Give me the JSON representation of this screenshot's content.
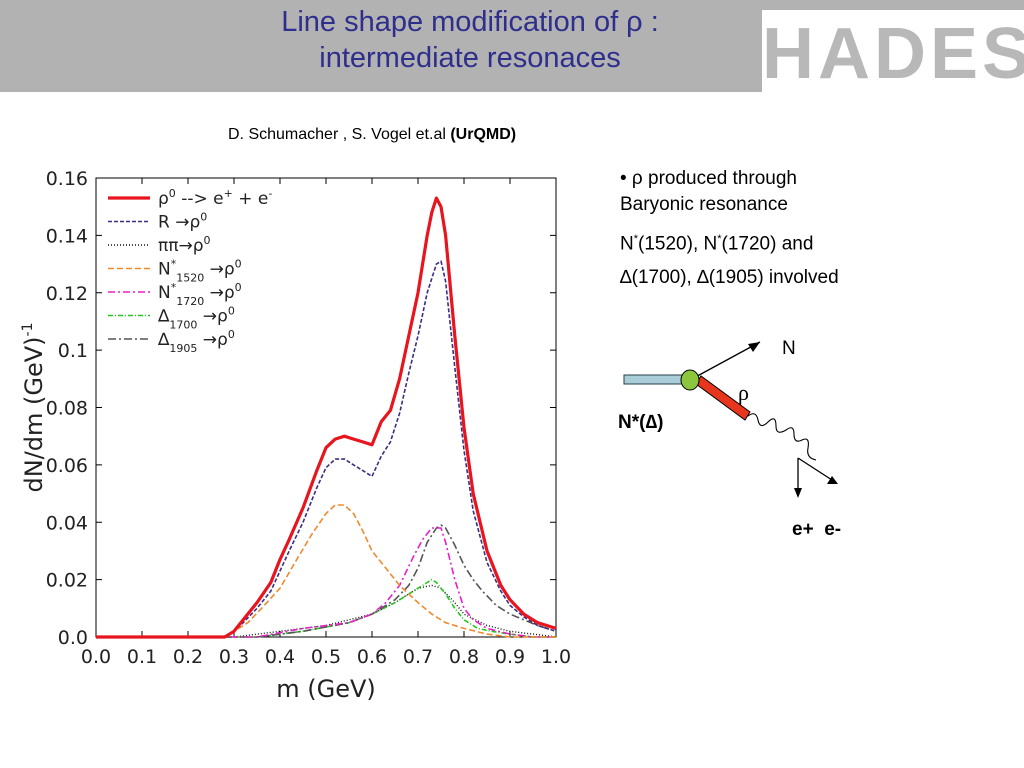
{
  "header": {
    "title_line1": "Line shape modification of ρ :",
    "title_line2": "intermediate resonaces",
    "logo_text": "HADES",
    "bg_color": "#b2b2b2",
    "title_color": "#2e2e8c"
  },
  "credit": {
    "authors": "D. Schumacher , S. Vogel et.al ",
    "model": "(UrQMD)"
  },
  "bullets": {
    "line1_sym": "• ρ",
    "line1_rest": " produced through",
    "line2": "Baryonic resonance",
    "line3_a": "N",
    "line3_sup1": "*",
    "line3_b": "(1520), N",
    "line3_sup2": "*",
    "line3_c": "(1720) and",
    "line4": "∆(1700), ∆(1905) involved"
  },
  "diagram": {
    "n_label": "N",
    "rho_label": "ρ",
    "resonance_label": "N*(∆)",
    "leptons_label": "e+  e-"
  },
  "chart_data": {
    "type": "line",
    "xlabel": "m (GeV)",
    "ylabel": "dN/dm (GeV)",
    "ylabel_sup": "-1",
    "xlim": [
      0.0,
      1.0
    ],
    "ylim": [
      0.0,
      0.16
    ],
    "xticks": [
      "0.0",
      "0.1",
      "0.2",
      "0.3",
      "0.4",
      "0.5",
      "0.6",
      "0.7",
      "0.8",
      "0.9",
      "1.0"
    ],
    "yticks": [
      "0.0",
      "0.02",
      "0.04",
      "0.06",
      "0.08",
      "0.1",
      "0.12",
      "0.14",
      "0.16"
    ],
    "legend_position": "top-left",
    "series": [
      {
        "key": "total",
        "name": "ρ⁰ --> e⁺ + e⁻",
        "color": "#e8141e",
        "dash": "",
        "width": 3.2,
        "x": [
          0.0,
          0.28,
          0.3,
          0.32,
          0.35,
          0.38,
          0.4,
          0.42,
          0.45,
          0.48,
          0.5,
          0.52,
          0.54,
          0.56,
          0.58,
          0.6,
          0.62,
          0.64,
          0.66,
          0.68,
          0.7,
          0.72,
          0.73,
          0.74,
          0.75,
          0.76,
          0.78,
          0.8,
          0.82,
          0.85,
          0.88,
          0.9,
          0.93,
          0.96,
          1.0
        ],
        "y": [
          0.0,
          0.0,
          0.002,
          0.006,
          0.012,
          0.019,
          0.027,
          0.034,
          0.045,
          0.058,
          0.066,
          0.069,
          0.07,
          0.069,
          0.068,
          0.067,
          0.075,
          0.079,
          0.09,
          0.105,
          0.12,
          0.14,
          0.148,
          0.153,
          0.15,
          0.14,
          0.105,
          0.073,
          0.05,
          0.03,
          0.018,
          0.013,
          0.008,
          0.005,
          0.003
        ]
      },
      {
        "key": "R",
        "name": "R →ρ⁰",
        "color": "#3a2e82",
        "dash": "4 2",
        "width": 1.6,
        "x": [
          0.0,
          0.28,
          0.3,
          0.32,
          0.35,
          0.38,
          0.4,
          0.42,
          0.45,
          0.48,
          0.5,
          0.52,
          0.54,
          0.56,
          0.58,
          0.6,
          0.62,
          0.64,
          0.66,
          0.68,
          0.7,
          0.72,
          0.74,
          0.75,
          0.76,
          0.78,
          0.8,
          0.82,
          0.85,
          0.88,
          0.9,
          0.93,
          0.96,
          1.0
        ],
        "y": [
          0.0,
          0.0,
          0.002,
          0.005,
          0.01,
          0.016,
          0.023,
          0.03,
          0.04,
          0.052,
          0.059,
          0.062,
          0.062,
          0.06,
          0.058,
          0.056,
          0.063,
          0.068,
          0.078,
          0.092,
          0.105,
          0.12,
          0.13,
          0.131,
          0.124,
          0.094,
          0.065,
          0.044,
          0.026,
          0.016,
          0.011,
          0.007,
          0.004,
          0.002
        ]
      },
      {
        "key": "pipi",
        "name": "ππ→ρ⁰",
        "color": "#111111",
        "dash": "1 2",
        "width": 1.4,
        "x": [
          0.0,
          0.3,
          0.4,
          0.5,
          0.6,
          0.65,
          0.7,
          0.73,
          0.75,
          0.78,
          0.8,
          0.85,
          0.9,
          0.95,
          1.0
        ],
        "y": [
          0.0,
          0.0,
          0.002,
          0.004,
          0.008,
          0.012,
          0.017,
          0.018,
          0.017,
          0.012,
          0.008,
          0.004,
          0.002,
          0.001,
          0.0
        ]
      },
      {
        "key": "N1520",
        "name": "N*1520 →ρ⁰",
        "color": "#f08a2c",
        "dash": "6 3",
        "width": 1.6,
        "x": [
          0.0,
          0.28,
          0.3,
          0.33,
          0.36,
          0.4,
          0.44,
          0.47,
          0.5,
          0.52,
          0.54,
          0.56,
          0.58,
          0.6,
          0.63,
          0.66,
          0.7,
          0.73,
          0.76,
          0.8,
          0.85,
          0.9,
          0.95,
          1.0
        ],
        "y": [
          0.0,
          0.0,
          0.002,
          0.005,
          0.01,
          0.017,
          0.028,
          0.036,
          0.043,
          0.046,
          0.046,
          0.043,
          0.037,
          0.03,
          0.024,
          0.018,
          0.012,
          0.008,
          0.005,
          0.003,
          0.001,
          0.0,
          0.0,
          0.0
        ]
      },
      {
        "key": "N1720",
        "name": "N*1720 →ρ⁰",
        "color": "#e81ec8",
        "dash": "7 3 2 3",
        "width": 1.6,
        "x": [
          0.0,
          0.35,
          0.45,
          0.55,
          0.6,
          0.63,
          0.66,
          0.69,
          0.71,
          0.73,
          0.75,
          0.76,
          0.78,
          0.8,
          0.82,
          0.85,
          0.9,
          0.95,
          1.0
        ],
        "y": [
          0.0,
          0.0,
          0.003,
          0.005,
          0.008,
          0.012,
          0.018,
          0.028,
          0.034,
          0.038,
          0.038,
          0.033,
          0.02,
          0.01,
          0.006,
          0.003,
          0.001,
          0.0,
          0.0
        ]
      },
      {
        "key": "D1700",
        "name": "∆1700 →ρ⁰",
        "color": "#22c81e",
        "dash": "5 2 1 2",
        "width": 1.6,
        "x": [
          0.0,
          0.35,
          0.45,
          0.55,
          0.6,
          0.65,
          0.68,
          0.7,
          0.72,
          0.73,
          0.74,
          0.76,
          0.78,
          0.8,
          0.83,
          0.86,
          0.9,
          0.95,
          1.0
        ],
        "y": [
          0.0,
          0.0,
          0.002,
          0.005,
          0.008,
          0.012,
          0.015,
          0.017,
          0.019,
          0.02,
          0.019,
          0.015,
          0.01,
          0.006,
          0.003,
          0.002,
          0.001,
          0.0,
          0.0
        ]
      },
      {
        "key": "D1905",
        "name": "∆1905 →ρ⁰",
        "color": "#555555",
        "dash": "8 3 2 3",
        "width": 1.6,
        "x": [
          0.0,
          0.35,
          0.45,
          0.55,
          0.6,
          0.65,
          0.68,
          0.7,
          0.72,
          0.74,
          0.75,
          0.76,
          0.78,
          0.8,
          0.82,
          0.84,
          0.87,
          0.9,
          0.93,
          0.96,
          1.0
        ],
        "y": [
          0.0,
          0.0,
          0.002,
          0.005,
          0.008,
          0.013,
          0.018,
          0.024,
          0.033,
          0.038,
          0.039,
          0.038,
          0.032,
          0.025,
          0.02,
          0.016,
          0.011,
          0.008,
          0.006,
          0.004,
          0.002
        ]
      }
    ],
    "legend": [
      {
        "key": "total",
        "main": "ρ",
        "sup": "0",
        "rest": " --> e",
        "sup2": "+",
        "rest2": " + e",
        "sup3": "-",
        "sub": ""
      },
      {
        "key": "R",
        "main": "R →ρ",
        "sup": "0",
        "rest": "",
        "sup2": "",
        "rest2": "",
        "sup3": "",
        "sub": ""
      },
      {
        "key": "pipi",
        "main": "ππ→ρ",
        "sup": "0",
        "rest": "",
        "sup2": "",
        "rest2": "",
        "sup3": "",
        "sub": ""
      },
      {
        "key": "N1520",
        "main": "N",
        "sup": "*",
        "rest": "",
        "sup2": "",
        "rest2": " →ρ",
        "sup3": "0",
        "sub": "1520"
      },
      {
        "key": "N1720",
        "main": "N",
        "sup": "*",
        "rest": "",
        "sup2": "",
        "rest2": " →ρ",
        "sup3": "0",
        "sub": "1720"
      },
      {
        "key": "D1700",
        "main": "∆",
        "sup": "",
        "rest": "",
        "sup2": "",
        "rest2": " →ρ",
        "sup3": "0",
        "sub": "1700"
      },
      {
        "key": "D1905",
        "main": "∆",
        "sup": "",
        "rest": "",
        "sup2": "",
        "rest2": " →ρ",
        "sup3": "0",
        "sub": "1905"
      }
    ]
  }
}
